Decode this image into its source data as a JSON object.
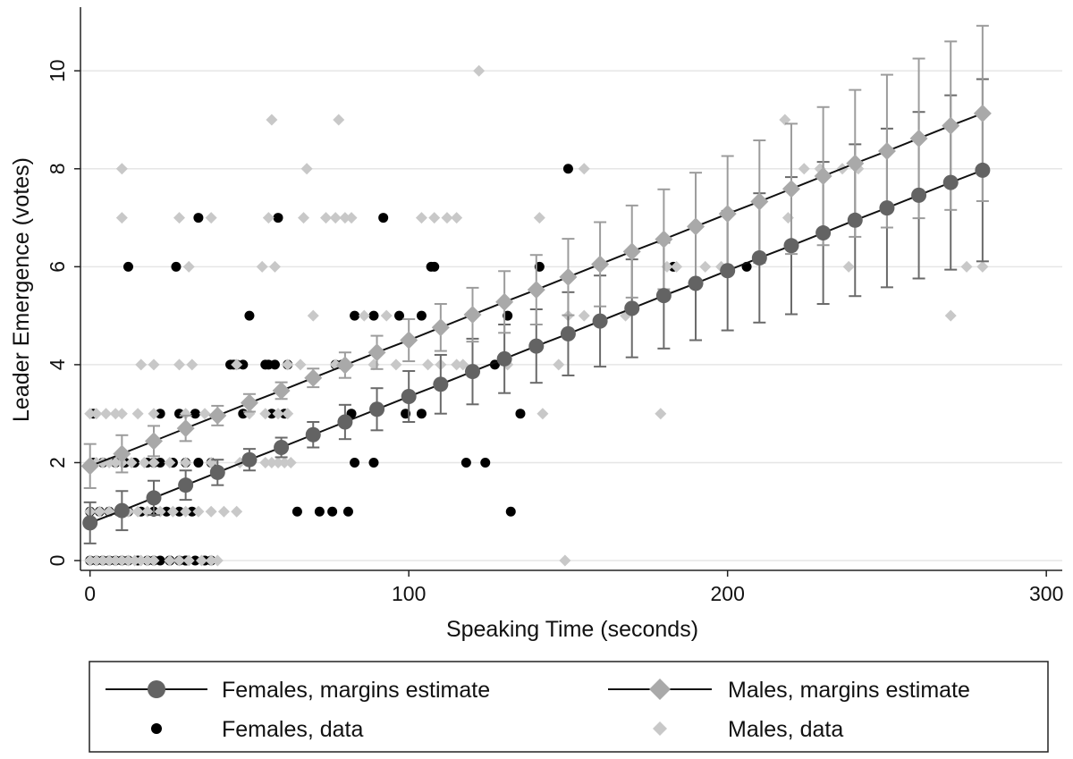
{
  "chart_data": {
    "type": "scatter",
    "title": "",
    "xlabel": "Speaking Time (seconds)",
    "ylabel": "Leader Emergence (votes)",
    "xlim": [
      -3,
      305
    ],
    "ylim": [
      -0.2,
      11.3
    ],
    "xticks": [
      {
        "value": 0,
        "label": "0"
      },
      {
        "value": 100,
        "label": "100"
      },
      {
        "value": 200,
        "label": "200"
      },
      {
        "value": 300,
        "label": "300"
      }
    ],
    "yticks": [
      {
        "value": 0,
        "label": "0"
      },
      {
        "value": 2,
        "label": "2"
      },
      {
        "value": 4,
        "label": "4"
      },
      {
        "value": 6,
        "label": "6"
      },
      {
        "value": 8,
        "label": "8"
      },
      {
        "value": 10,
        "label": "10"
      }
    ],
    "grid": true,
    "legend_position": "bottom",
    "legend": {
      "females_estimate": "Females, margins estimate",
      "males_estimate": "Males, margins estimate",
      "females_data": "Females, data",
      "males_data": "Males, data"
    },
    "colors": {
      "female_marker": "#636363",
      "female_error": "#6a6a6a",
      "male_marker": "#a9a9a9",
      "male_error": "#9c9c9c",
      "line": "#111111",
      "female_data": "#000000",
      "male_data": "#c8c8c8",
      "grid": "#e6e6e6",
      "axis": "#222222"
    },
    "series": [
      {
        "name": "Females, margins estimate",
        "kind": "margins",
        "x": [
          0,
          10,
          20,
          30,
          40,
          50,
          60,
          70,
          80,
          90,
          100,
          110,
          120,
          130,
          140,
          150,
          160,
          170,
          180,
          190,
          200,
          210,
          220,
          230,
          240,
          250,
          260,
          270,
          280
        ],
        "y": [
          0.77,
          1.02,
          1.28,
          1.54,
          1.8,
          2.06,
          2.31,
          2.57,
          2.83,
          3.09,
          3.35,
          3.6,
          3.86,
          4.12,
          4.38,
          4.63,
          4.89,
          5.15,
          5.41,
          5.66,
          5.92,
          6.18,
          6.43,
          6.69,
          6.95,
          7.2,
          7.46,
          7.72,
          7.97
        ],
        "err": [
          0.42,
          0.4,
          0.35,
          0.3,
          0.26,
          0.22,
          0.2,
          0.26,
          0.35,
          0.43,
          0.52,
          0.6,
          0.67,
          0.7,
          0.75,
          0.85,
          0.93,
          1.0,
          1.08,
          1.16,
          1.22,
          1.32,
          1.4,
          1.45,
          1.55,
          1.62,
          1.7,
          1.78,
          1.86
        ]
      },
      {
        "name": "Males, margins estimate",
        "kind": "margins",
        "x": [
          0,
          10,
          20,
          30,
          40,
          50,
          60,
          70,
          80,
          90,
          100,
          110,
          120,
          130,
          140,
          150,
          160,
          170,
          180,
          190,
          200,
          210,
          220,
          230,
          240,
          250,
          260,
          270,
          280
        ],
        "y": [
          1.93,
          2.18,
          2.44,
          2.7,
          2.96,
          3.22,
          3.47,
          3.73,
          3.99,
          4.25,
          4.5,
          4.76,
          5.02,
          5.28,
          5.53,
          5.79,
          6.05,
          6.31,
          6.56,
          6.82,
          7.08,
          7.33,
          7.59,
          7.85,
          8.11,
          8.36,
          8.62,
          8.88,
          9.13
        ],
        "err": [
          0.45,
          0.38,
          0.31,
          0.26,
          0.2,
          0.18,
          0.17,
          0.19,
          0.26,
          0.34,
          0.43,
          0.48,
          0.55,
          0.63,
          0.71,
          0.78,
          0.86,
          0.94,
          1.02,
          1.1,
          1.18,
          1.25,
          1.33,
          1.41,
          1.5,
          1.56,
          1.63,
          1.72,
          1.79
        ]
      },
      {
        "name": "Females, data",
        "kind": "data",
        "x": [
          0,
          2,
          4,
          6,
          8,
          10,
          12,
          15,
          18,
          20,
          22,
          25,
          28,
          30,
          33,
          36,
          38,
          0,
          3,
          6,
          9,
          12,
          16,
          20,
          24,
          28,
          32,
          1,
          4,
          8,
          11,
          14,
          18,
          22,
          26,
          30,
          34,
          38,
          1,
          22,
          28,
          33,
          48,
          57,
          61,
          56,
          58,
          62,
          44,
          46,
          48,
          55,
          77,
          79,
          83,
          89,
          97,
          82,
          99,
          104,
          104,
          108,
          127,
          131,
          135,
          141,
          150,
          183,
          206,
          12,
          27,
          34,
          59,
          92,
          107,
          132,
          65,
          72,
          76,
          81,
          83,
          89,
          118,
          124,
          45,
          50,
          20,
          25,
          30
        ],
        "y": [
          0,
          0,
          0,
          0,
          0,
          0,
          0,
          0,
          0,
          0,
          0,
          0,
          0,
          0,
          0,
          0,
          0,
          1,
          1,
          1,
          1,
          1,
          1,
          1,
          1,
          1,
          1,
          2,
          2,
          2,
          2,
          2,
          2,
          2,
          2,
          2,
          2,
          2,
          3,
          3,
          3,
          3,
          3,
          3,
          3,
          4,
          4,
          4,
          4,
          4,
          4,
          4,
          4,
          4,
          5,
          5,
          5,
          3,
          3,
          3,
          5,
          6,
          4,
          5,
          3,
          6,
          8,
          6,
          6,
          6,
          6,
          7,
          7,
          7,
          6,
          1,
          1,
          1,
          1,
          1,
          2,
          2,
          2,
          2,
          4,
          5,
          2,
          0,
          0
        ]
      },
      {
        "name": "Males, data",
        "kind": "data",
        "x": [
          0,
          2,
          4,
          6,
          8,
          10,
          12,
          14,
          16,
          18,
          20,
          25,
          28,
          31,
          35,
          38,
          40,
          0,
          3,
          6,
          9,
          12,
          15,
          18,
          22,
          26,
          30,
          34,
          38,
          42,
          46,
          0,
          2,
          4,
          6,
          8,
          10,
          13,
          17,
          20,
          25,
          30,
          38,
          47,
          55,
          57,
          59,
          61,
          63,
          0,
          2,
          5,
          8,
          10,
          15,
          20,
          30,
          36,
          40,
          50,
          55,
          59,
          62,
          16,
          20,
          28,
          32,
          46,
          62,
          66,
          77,
          80,
          89,
          96,
          106,
          110,
          115,
          117,
          131,
          147,
          150,
          155,
          168,
          10,
          28,
          38,
          56,
          67,
          74,
          77,
          80,
          82,
          104,
          108,
          112,
          115,
          141,
          181,
          193,
          198,
          219,
          224,
          229,
          236,
          241,
          10,
          57,
          78,
          68,
          122,
          155,
          179,
          218,
          280,
          238,
          270,
          275,
          149,
          120,
          184,
          31,
          54,
          58,
          70,
          86,
          93,
          142
        ],
        "y": [
          0,
          0,
          0,
          0,
          0,
          0,
          0,
          0,
          0,
          0,
          0,
          0,
          0,
          0,
          0,
          0,
          0,
          1,
          1,
          1,
          1,
          1,
          1,
          1,
          1,
          1,
          1,
          1,
          1,
          1,
          1,
          2,
          2,
          2,
          2,
          2,
          2,
          2,
          2,
          2,
          2,
          2,
          2,
          2,
          2,
          2,
          2,
          2,
          2,
          3,
          3,
          3,
          3,
          3,
          3,
          3,
          3,
          3,
          3,
          3,
          3,
          3,
          3,
          4,
          4,
          4,
          4,
          4,
          4,
          4,
          4,
          4,
          4,
          4,
          4,
          4,
          4,
          4,
          4,
          4,
          5,
          5,
          5,
          7,
          7,
          7,
          7,
          7,
          7,
          7,
          7,
          7,
          7,
          7,
          7,
          7,
          7,
          6,
          6,
          6,
          7,
          8,
          8,
          8,
          8,
          8,
          9,
          9,
          8,
          10,
          8,
          3,
          9,
          6,
          6,
          5,
          6,
          0,
          5,
          6,
          6,
          6,
          6,
          5,
          5,
          5,
          3
        ]
      }
    ]
  }
}
